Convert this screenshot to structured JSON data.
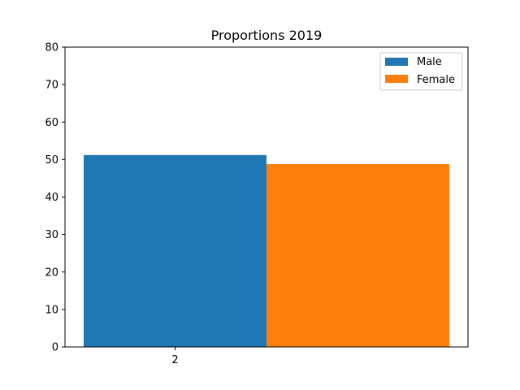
{
  "chart_data": {
    "type": "bar",
    "title": "Proportions 2019",
    "xlabel": "",
    "ylabel": "",
    "categories": [
      "2"
    ],
    "series": [
      {
        "name": "Male",
        "values": [
          51.2
        ],
        "color": "#1f77b4"
      },
      {
        "name": "Female",
        "values": [
          48.8
        ],
        "color": "#ff7f0e"
      }
    ],
    "ylim": [
      0,
      80
    ],
    "yticks": [
      0,
      10,
      20,
      30,
      40,
      50,
      60,
      70,
      80
    ],
    "grid": false,
    "legend_position": "top-right"
  }
}
